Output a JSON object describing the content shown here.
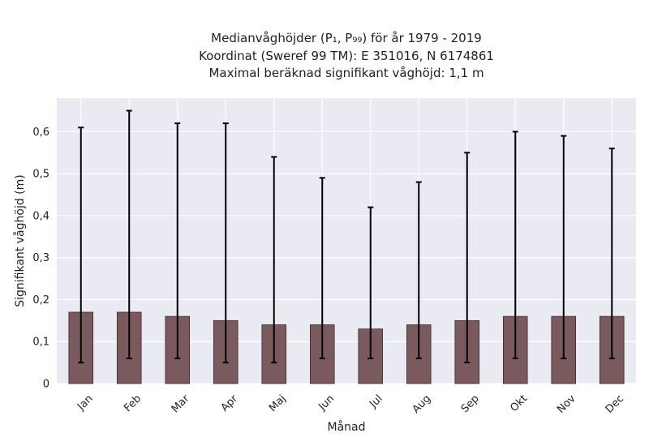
{
  "chart_data": {
    "type": "bar",
    "title_lines": [
      "Medianvåghöjder (P₁, P₉₉) för år 1979 - 2019",
      "Koordinat (Sweref 99 TM): E 351016, N 6174861",
      "Maximal beräknad signifikant våghöjd: 1,1 m"
    ],
    "xlabel": "Månad",
    "ylabel": "Signifikant våghöjd (m)",
    "categories": [
      "Jan",
      "Feb",
      "Mar",
      "Apr",
      "Maj",
      "Jun",
      "Jul",
      "Aug",
      "Sep",
      "Okt",
      "Nov",
      "Dec"
    ],
    "values": [
      0.17,
      0.17,
      0.16,
      0.15,
      0.14,
      0.14,
      0.13,
      0.14,
      0.15,
      0.16,
      0.16,
      0.16
    ],
    "error_low": [
      0.05,
      0.06,
      0.06,
      0.05,
      0.05,
      0.06,
      0.06,
      0.06,
      0.05,
      0.06,
      0.06,
      0.06
    ],
    "error_high": [
      0.61,
      0.65,
      0.62,
      0.62,
      0.54,
      0.49,
      0.42,
      0.48,
      0.55,
      0.6,
      0.59,
      0.56
    ],
    "yticks": [
      "0",
      "0,1",
      "0,2",
      "0,3",
      "0,4",
      "0,5",
      "0,6"
    ],
    "ytick_values": [
      0,
      0.1,
      0.2,
      0.3,
      0.4,
      0.5,
      0.6
    ],
    "ylim": [
      0,
      0.68
    ],
    "grid": true,
    "colors": {
      "bar": "#7a5a5c",
      "bar_edge": "#3a2a2b",
      "background": "#eaeaf2",
      "grid": "#ffffff",
      "errorbar": "#000000"
    }
  }
}
